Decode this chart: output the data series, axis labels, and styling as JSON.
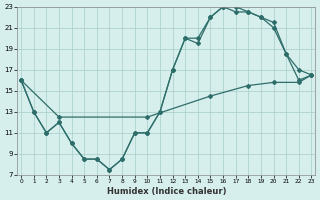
{
  "xlabel": "Humidex (Indice chaleur)",
  "background_color": "#d6eeec",
  "grid_color": "#a8ceca",
  "line_color": "#2e6e6a",
  "xlim": [
    0,
    23
  ],
  "ylim": [
    7,
    23
  ],
  "xticks": [
    0,
    1,
    2,
    3,
    4,
    5,
    6,
    7,
    8,
    9,
    10,
    11,
    12,
    13,
    14,
    15,
    16,
    17,
    18,
    19,
    20,
    21,
    22,
    23
  ],
  "yticks": [
    7,
    9,
    11,
    13,
    15,
    17,
    19,
    21,
    23
  ],
  "line1_x": [
    0,
    1,
    2,
    3,
    4,
    5,
    6,
    7,
    8,
    9,
    10,
    11,
    12,
    13,
    14,
    15,
    16,
    17,
    18,
    19,
    20,
    21,
    22,
    23
  ],
  "line1_y": [
    16,
    13,
    11,
    12,
    10,
    8.5,
    8.5,
    7.5,
    8.5,
    11,
    11,
    13,
    17,
    20,
    20,
    22,
    23,
    23,
    22.5,
    22,
    21,
    18.5,
    17,
    16.5
  ],
  "line2_x": [
    0,
    1,
    2,
    3,
    4,
    5,
    6,
    7,
    8,
    9,
    10,
    11,
    12,
    13,
    14,
    15,
    16,
    17,
    18,
    19,
    20,
    21,
    22,
    23
  ],
  "line2_y": [
    16,
    13,
    11,
    12,
    10,
    8.5,
    8.5,
    7.5,
    8.5,
    11,
    11,
    13,
    17,
    20,
    19.5,
    22,
    23,
    22.5,
    22.5,
    22,
    21.5,
    18.5,
    16,
    16.5
  ],
  "line3_x": [
    0,
    3,
    10,
    15,
    18,
    20,
    22,
    23
  ],
  "line3_y": [
    16,
    12.5,
    12.5,
    14.5,
    15.5,
    15.8,
    15.8,
    16.5
  ]
}
